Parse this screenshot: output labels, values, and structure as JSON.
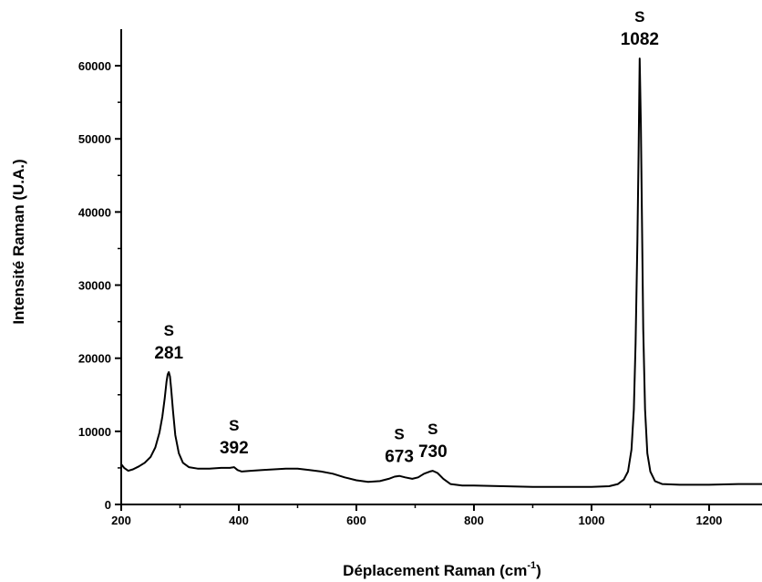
{
  "chart_data": {
    "type": "line",
    "title": "",
    "xlabel": "Déplacement Raman (cm",
    "xlabel_sup": "-1",
    "xlabel_close": ")",
    "ylabel": "Intensité Raman (U.A.)",
    "xlim": [
      200,
      1290
    ],
    "ylim": [
      0,
      65000
    ],
    "xticks": [
      200,
      400,
      600,
      800,
      1000,
      1200
    ],
    "xtick_labels": [
      "200",
      "400",
      "600",
      "800",
      "1000",
      "1200"
    ],
    "yticks": [
      0,
      10000,
      20000,
      30000,
      40000,
      50000,
      60000
    ],
    "ytick_labels": [
      "0",
      "10000",
      "20000",
      "30000",
      "40000",
      "50000",
      "60000"
    ],
    "grid": false,
    "line_color": "#000000",
    "series": [
      {
        "x": [
          200,
          205,
          212,
          220,
          230,
          240,
          250,
          258,
          265,
          270,
          274,
          277,
          279,
          281,
          283,
          285,
          288,
          292,
          298,
          305,
          315,
          330,
          350,
          370,
          385,
          392,
          398,
          405,
          420,
          440,
          460,
          480,
          500,
          520,
          540,
          560,
          580,
          600,
          620,
          640,
          655,
          665,
          673,
          683,
          695,
          705,
          715,
          725,
          730,
          738,
          748,
          760,
          780,
          800,
          850,
          900,
          950,
          1000,
          1030,
          1045,
          1055,
          1062,
          1068,
          1072,
          1075,
          1078,
          1080,
          1082,
          1084,
          1086,
          1088,
          1091,
          1095,
          1100,
          1108,
          1120,
          1150,
          1200,
          1250,
          1290
        ],
        "y": [
          5500,
          5000,
          4600,
          4800,
          5200,
          5700,
          6500,
          7800,
          9800,
          12000,
          14500,
          16800,
          17800,
          18100,
          17500,
          15800,
          12800,
          9500,
          7000,
          5700,
          5100,
          4900,
          4900,
          5000,
          5000,
          5100,
          4700,
          4500,
          4600,
          4700,
          4800,
          4900,
          4900,
          4700,
          4500,
          4200,
          3700,
          3300,
          3100,
          3200,
          3500,
          3800,
          3900,
          3700,
          3500,
          3700,
          4200,
          4500,
          4600,
          4300,
          3500,
          2800,
          2600,
          2600,
          2500,
          2400,
          2400,
          2400,
          2500,
          2800,
          3400,
          4500,
          7500,
          13000,
          22000,
          36000,
          48000,
          61000,
          52000,
          38000,
          24000,
          13000,
          7000,
          4500,
          3200,
          2800,
          2700,
          2700,
          2800,
          2800
        ]
      }
    ],
    "annotations": [
      {
        "letter": "S",
        "value": "281",
        "x": 281,
        "y": 18100
      },
      {
        "letter": "S",
        "value": "392",
        "x": 392,
        "y": 5100
      },
      {
        "letter": "S",
        "value": "673",
        "x": 673,
        "y": 3900
      },
      {
        "letter": "S",
        "value": "730",
        "x": 730,
        "y": 4600
      },
      {
        "letter": "S",
        "value": "1082",
        "x": 1082,
        "y": 61000
      }
    ]
  }
}
